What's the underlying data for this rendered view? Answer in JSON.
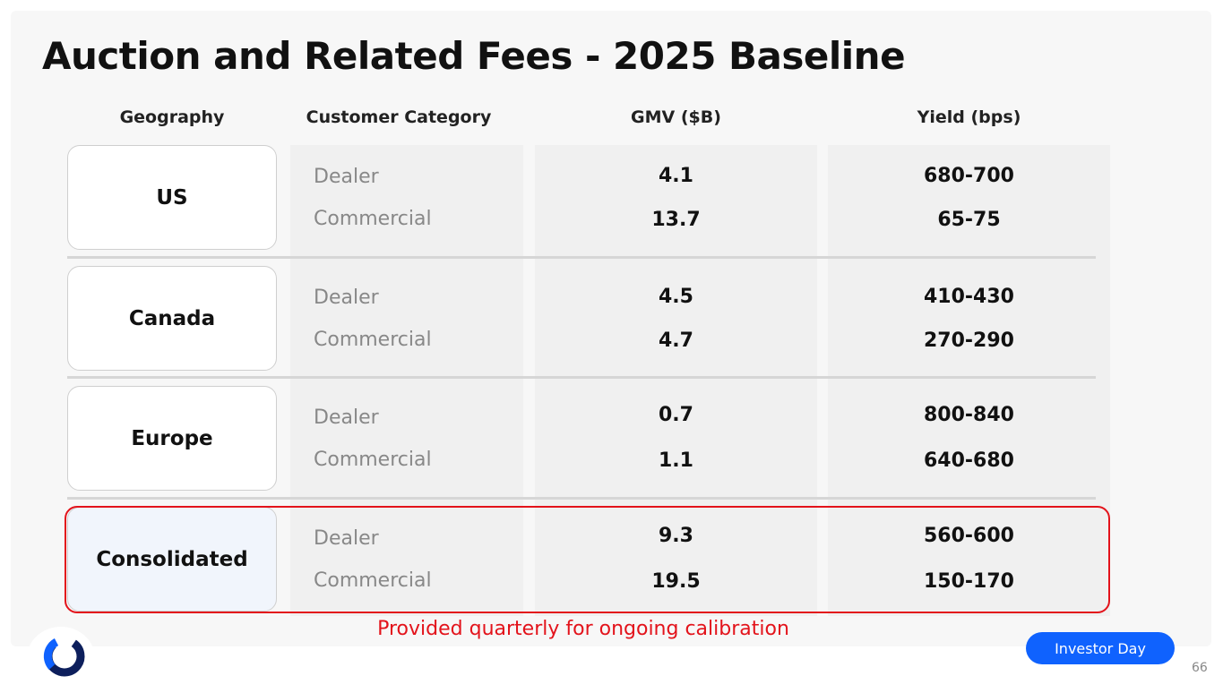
{
  "title": "Auction and Related Fees - 2025 Baseline",
  "headers": {
    "geography": "Geography",
    "category": "Customer Category",
    "gmv": "GMV ($B)",
    "yield": "Yield (bps)"
  },
  "rows": [
    {
      "geo": "US",
      "dealer": "Dealer",
      "commercial": "Commercial",
      "gmv_dealer": "4.1",
      "gmv_commercial": "13.7",
      "yield_dealer": "680-700",
      "yield_commercial": "65-75"
    },
    {
      "geo": "Canada",
      "dealer": "Dealer",
      "commercial": "Commercial",
      "gmv_dealer": "4.5",
      "gmv_commercial": "4.7",
      "yield_dealer": "410-430",
      "yield_commercial": "270-290"
    },
    {
      "geo": "Europe",
      "dealer": "Dealer",
      "commercial": "Commercial",
      "gmv_dealer": "0.7",
      "gmv_commercial": "1.1",
      "yield_dealer": "800-840",
      "yield_commercial": "640-680"
    },
    {
      "geo": "Consolidated",
      "dealer": "Dealer",
      "commercial": "Commercial",
      "gmv_dealer": "9.3",
      "gmv_commercial": "19.5",
      "yield_dealer": "560-600",
      "yield_commercial": "150-170"
    }
  ],
  "note": "Provided quarterly for ongoing calibration",
  "badge": "Investor Day",
  "page_number": "66",
  "colors": {
    "accent_red": "#e3131b",
    "brand_blue": "#0f62fe",
    "logo_navy": "#0d1f5c"
  }
}
